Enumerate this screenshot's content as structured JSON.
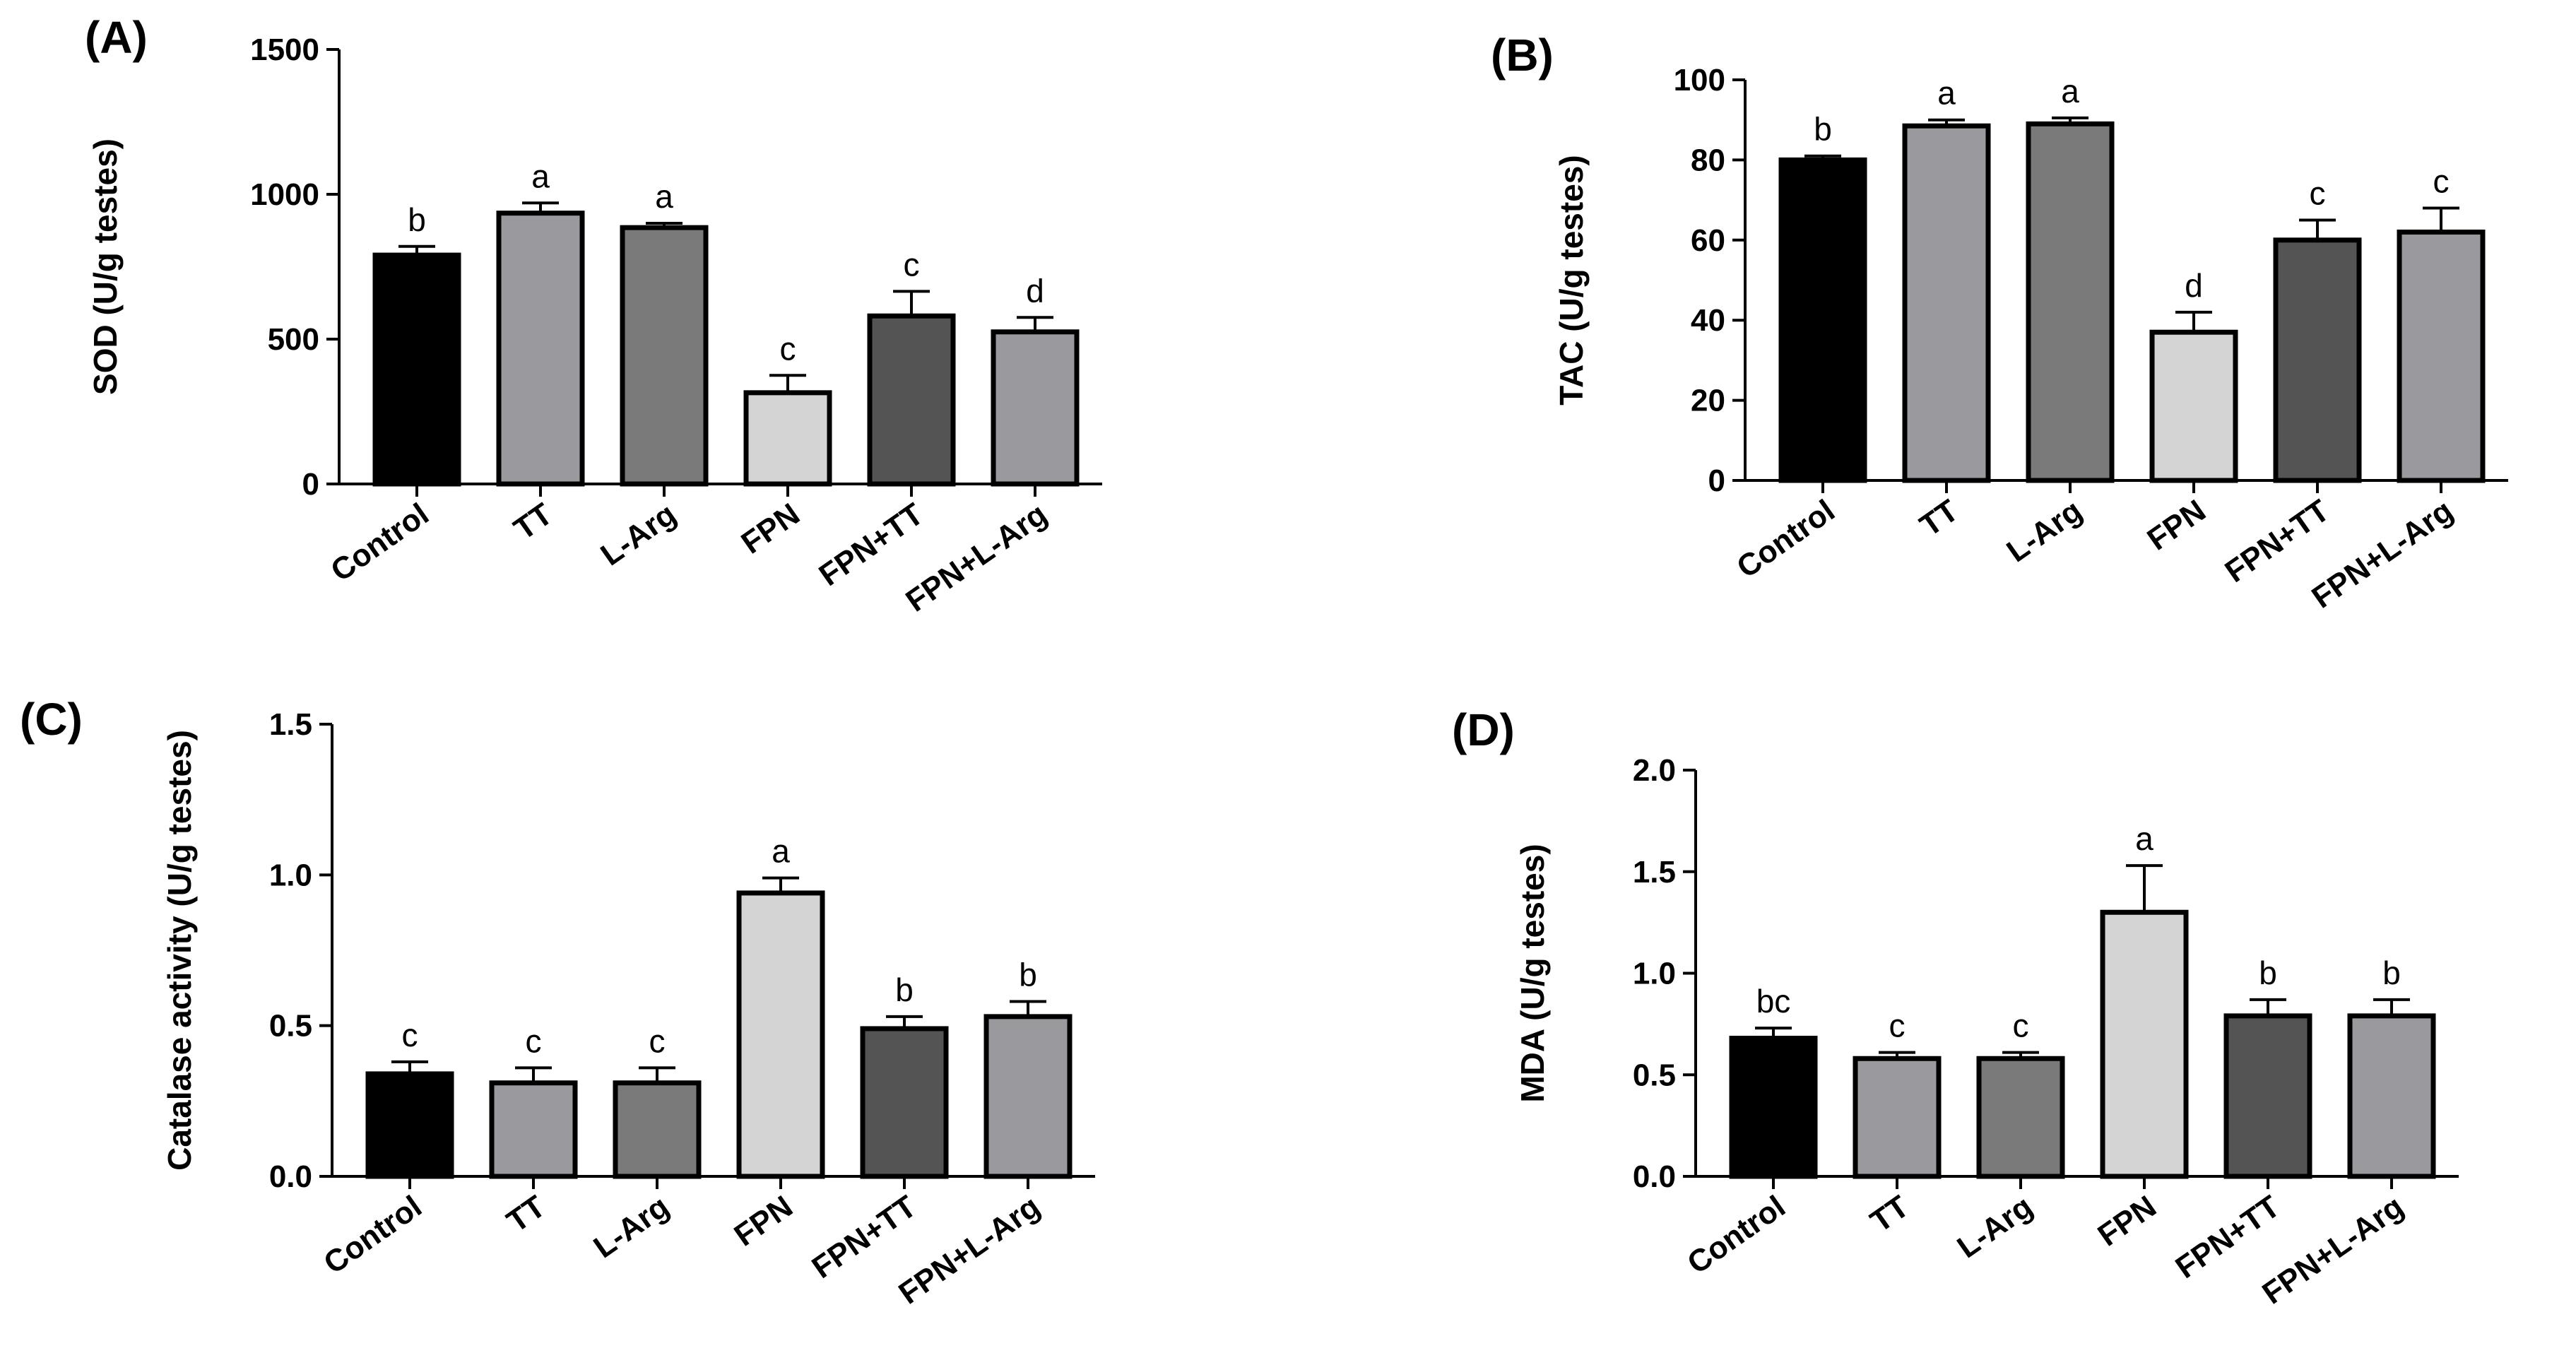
{
  "chart_data": [
    {
      "type": "bar",
      "panel": "(A)",
      "ylabel": "SOD (U/g testes)",
      "ylim": [
        0,
        1500
      ],
      "yticks": [
        0,
        500,
        1000,
        1500
      ],
      "categories": [
        "Control",
        "TT",
        "L-Arg",
        "FPN",
        "FPN+TT",
        "FPN+L-Arg"
      ],
      "values": [
        790,
        935,
        885,
        315,
        580,
        525
      ],
      "errors": [
        30,
        35,
        15,
        60,
        85,
        50
      ],
      "letters": [
        "b",
        "a",
        "a",
        "c",
        "c",
        "d"
      ],
      "colors": [
        "#000000",
        "#9a9a9e",
        "#7a7a7a",
        "#d4d4d4",
        "#545454",
        "#9a9a9e"
      ]
    },
    {
      "type": "bar",
      "panel": "(B)",
      "ylabel": "TAC (U/g testes)",
      "ylim": [
        0,
        100
      ],
      "yticks": [
        0,
        20,
        40,
        60,
        80,
        100
      ],
      "categories": [
        "Control",
        "TT",
        "L-Arg",
        "FPN",
        "FPN+TT",
        "FPN+L-Arg"
      ],
      "values": [
        80,
        88.5,
        89,
        37,
        60,
        62
      ],
      "errors": [
        1,
        1.5,
        1.5,
        5,
        5,
        6
      ],
      "letters": [
        "b",
        "a",
        "a",
        "d",
        "c",
        "c"
      ],
      "colors": [
        "#000000",
        "#9a9a9e",
        "#7a7a7a",
        "#d4d4d4",
        "#545454",
        "#9a9a9e"
      ]
    },
    {
      "type": "bar",
      "panel": "(C)",
      "ylabel": "Catalase activity (U/g testes)",
      "ylim": [
        0,
        1.5
      ],
      "yticks": [
        0.0,
        0.5,
        1.0,
        1.5
      ],
      "ytick_labels": [
        "0.0",
        "0.5",
        "1.0",
        "1.5"
      ],
      "categories": [
        "Control",
        "TT",
        "L-Arg",
        "FPN",
        "FPN+TT",
        "FPN+L-Arg"
      ],
      "values": [
        0.34,
        0.31,
        0.31,
        0.94,
        0.49,
        0.53
      ],
      "errors": [
        0.04,
        0.05,
        0.05,
        0.05,
        0.04,
        0.05
      ],
      "letters": [
        "c",
        "c",
        "c",
        "a",
        "b",
        "b"
      ],
      "colors": [
        "#000000",
        "#9a9a9e",
        "#7a7a7a",
        "#d4d4d4",
        "#545454",
        "#9a9a9e"
      ]
    },
    {
      "type": "bar",
      "panel": "(D)",
      "ylabel": "MDA (U/g testes)",
      "ylim": [
        0,
        2.0
      ],
      "yticks": [
        0.0,
        0.5,
        1.0,
        1.5,
        2.0
      ],
      "ytick_labels": [
        "0.0",
        "0.5",
        "1.0",
        "1.5",
        "2.0"
      ],
      "categories": [
        "Control",
        "TT",
        "L-Arg",
        "FPN",
        "FPN+TT",
        "FPN+L-Arg"
      ],
      "values": [
        0.68,
        0.58,
        0.58,
        1.3,
        0.79,
        0.79
      ],
      "errors": [
        0.05,
        0.03,
        0.03,
        0.23,
        0.08,
        0.08
      ],
      "letters": [
        "bc",
        "c",
        "c",
        "a",
        "b",
        "b"
      ],
      "colors": [
        "#000000",
        "#9a9a9e",
        "#7a7a7a",
        "#d4d4d4",
        "#545454",
        "#9a9a9e"
      ]
    }
  ]
}
